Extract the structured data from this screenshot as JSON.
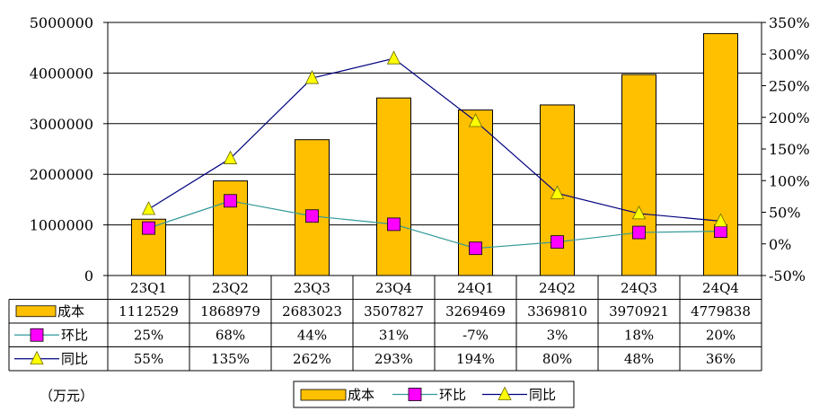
{
  "unit_label": "（万元）",
  "chart_data": {
    "type": "bar",
    "categories": [
      "23Q1",
      "23Q2",
      "23Q3",
      "23Q4",
      "24Q1",
      "24Q2",
      "24Q3",
      "24Q4"
    ],
    "series": [
      {
        "name": "成本",
        "type": "bar",
        "axis": "left",
        "color": "#ffc000",
        "values": [
          1112529,
          1868979,
          2683023,
          3507827,
          3269469,
          3369810,
          3970921,
          4779838
        ],
        "labels": [
          "1112529",
          "1868979",
          "2683023",
          "3507827",
          "3269469",
          "3369810",
          "3970921",
          "4779838"
        ]
      },
      {
        "name": "环比",
        "type": "line",
        "axis": "right",
        "color": "#339999",
        "marker_color": "#ff00ff",
        "values": [
          25,
          68,
          44,
          31,
          -7,
          3,
          18,
          20
        ],
        "labels": [
          "25%",
          "68%",
          "44%",
          "31%",
          "-7%",
          "3%",
          "18%",
          "20%"
        ]
      },
      {
        "name": "同比",
        "type": "line",
        "axis": "right",
        "color": "#000080",
        "marker_color": "#ffff00",
        "values": [
          55,
          135,
          262,
          293,
          194,
          80,
          48,
          36
        ],
        "labels": [
          "55%",
          "135%",
          "262%",
          "293%",
          "194%",
          "80%",
          "48%",
          "36%"
        ]
      }
    ],
    "y_left": {
      "min": 0,
      "max": 5000000,
      "step": 1000000,
      "ticks": [
        "0",
        "1000000",
        "2000000",
        "3000000",
        "4000000",
        "5000000"
      ]
    },
    "y_right": {
      "min": -50,
      "max": 350,
      "step": 50,
      "ticks": [
        "-50%",
        "0%",
        "50%",
        "100%",
        "150%",
        "200%",
        "250%",
        "300%",
        "350%"
      ]
    },
    "legend": {
      "position": "bottom",
      "items": [
        "成本",
        "环比",
        "同比"
      ]
    },
    "grid": true
  }
}
